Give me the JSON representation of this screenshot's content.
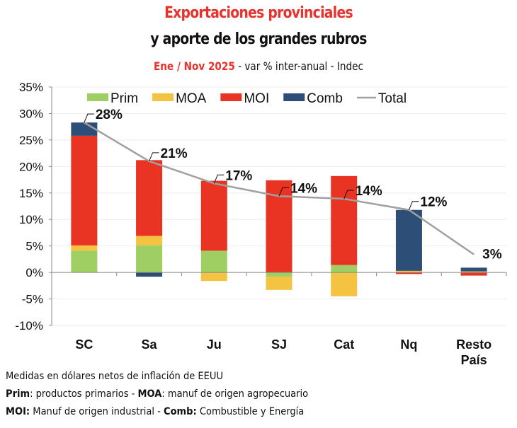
{
  "chart_data": {
    "type": "bar",
    "stacked": true,
    "title": "Exportaciones provinciales",
    "subtitle": "y aporte de los grandes rubros",
    "period": "Ene / Nov 2025",
    "period_suffix": " - var % inter-anual - Indec",
    "categories": [
      "SC",
      "Sa",
      "Ju",
      "SJ",
      "Cat",
      "Nq",
      "Resto País"
    ],
    "series": [
      {
        "name": "Prim",
        "color": "#9fce63",
        "values": [
          4.1,
          5.1,
          4.1,
          -0.8,
          1.4,
          0,
          0
        ]
      },
      {
        "name": "MOA",
        "color": "#f5c342",
        "values": [
          1.0,
          1.8,
          -1.6,
          -2.5,
          -4.5,
          0.3,
          0.2
        ]
      },
      {
        "name": "MOI",
        "color": "#e93323",
        "values": [
          20.7,
          14.3,
          13.2,
          17.4,
          16.8,
          -0.3,
          -0.6
        ]
      },
      {
        "name": "Comb",
        "color": "#2d4f77",
        "values": [
          2.5,
          -0.8,
          0,
          0,
          0,
          11.5,
          0.7
        ]
      }
    ],
    "total": {
      "name": "Total",
      "color": "#a0a0a0",
      "values": [
        28.3,
        21.0,
        16.8,
        14.4,
        13.9,
        11.8,
        3.4
      ],
      "labels": [
        "28%",
        "21%",
        "17%",
        "14%",
        "14%",
        "12%",
        "3%"
      ]
    },
    "yticks": [
      "35%",
      "30%",
      "25%",
      "20%",
      "15%",
      "10%",
      "5%",
      "0%",
      "-5%",
      "-10%"
    ],
    "ylim": [
      -10,
      35
    ],
    "grid": true,
    "legend": "top"
  },
  "notes": {
    "line1": "Medidas en dólares netos de inflación de EEUU",
    "l2_k1": "Prim",
    "l2_t1": ": productos primarios - ",
    "l2_k2": "MOA",
    "l2_t2": ": manuf de origen agropecuario",
    "l3_k1": "MOI:",
    "l3_t1": " Manuf de origen industrial - ",
    "l3_k2": "Comb:",
    "l3_t2": " Combustible y Energía"
  }
}
